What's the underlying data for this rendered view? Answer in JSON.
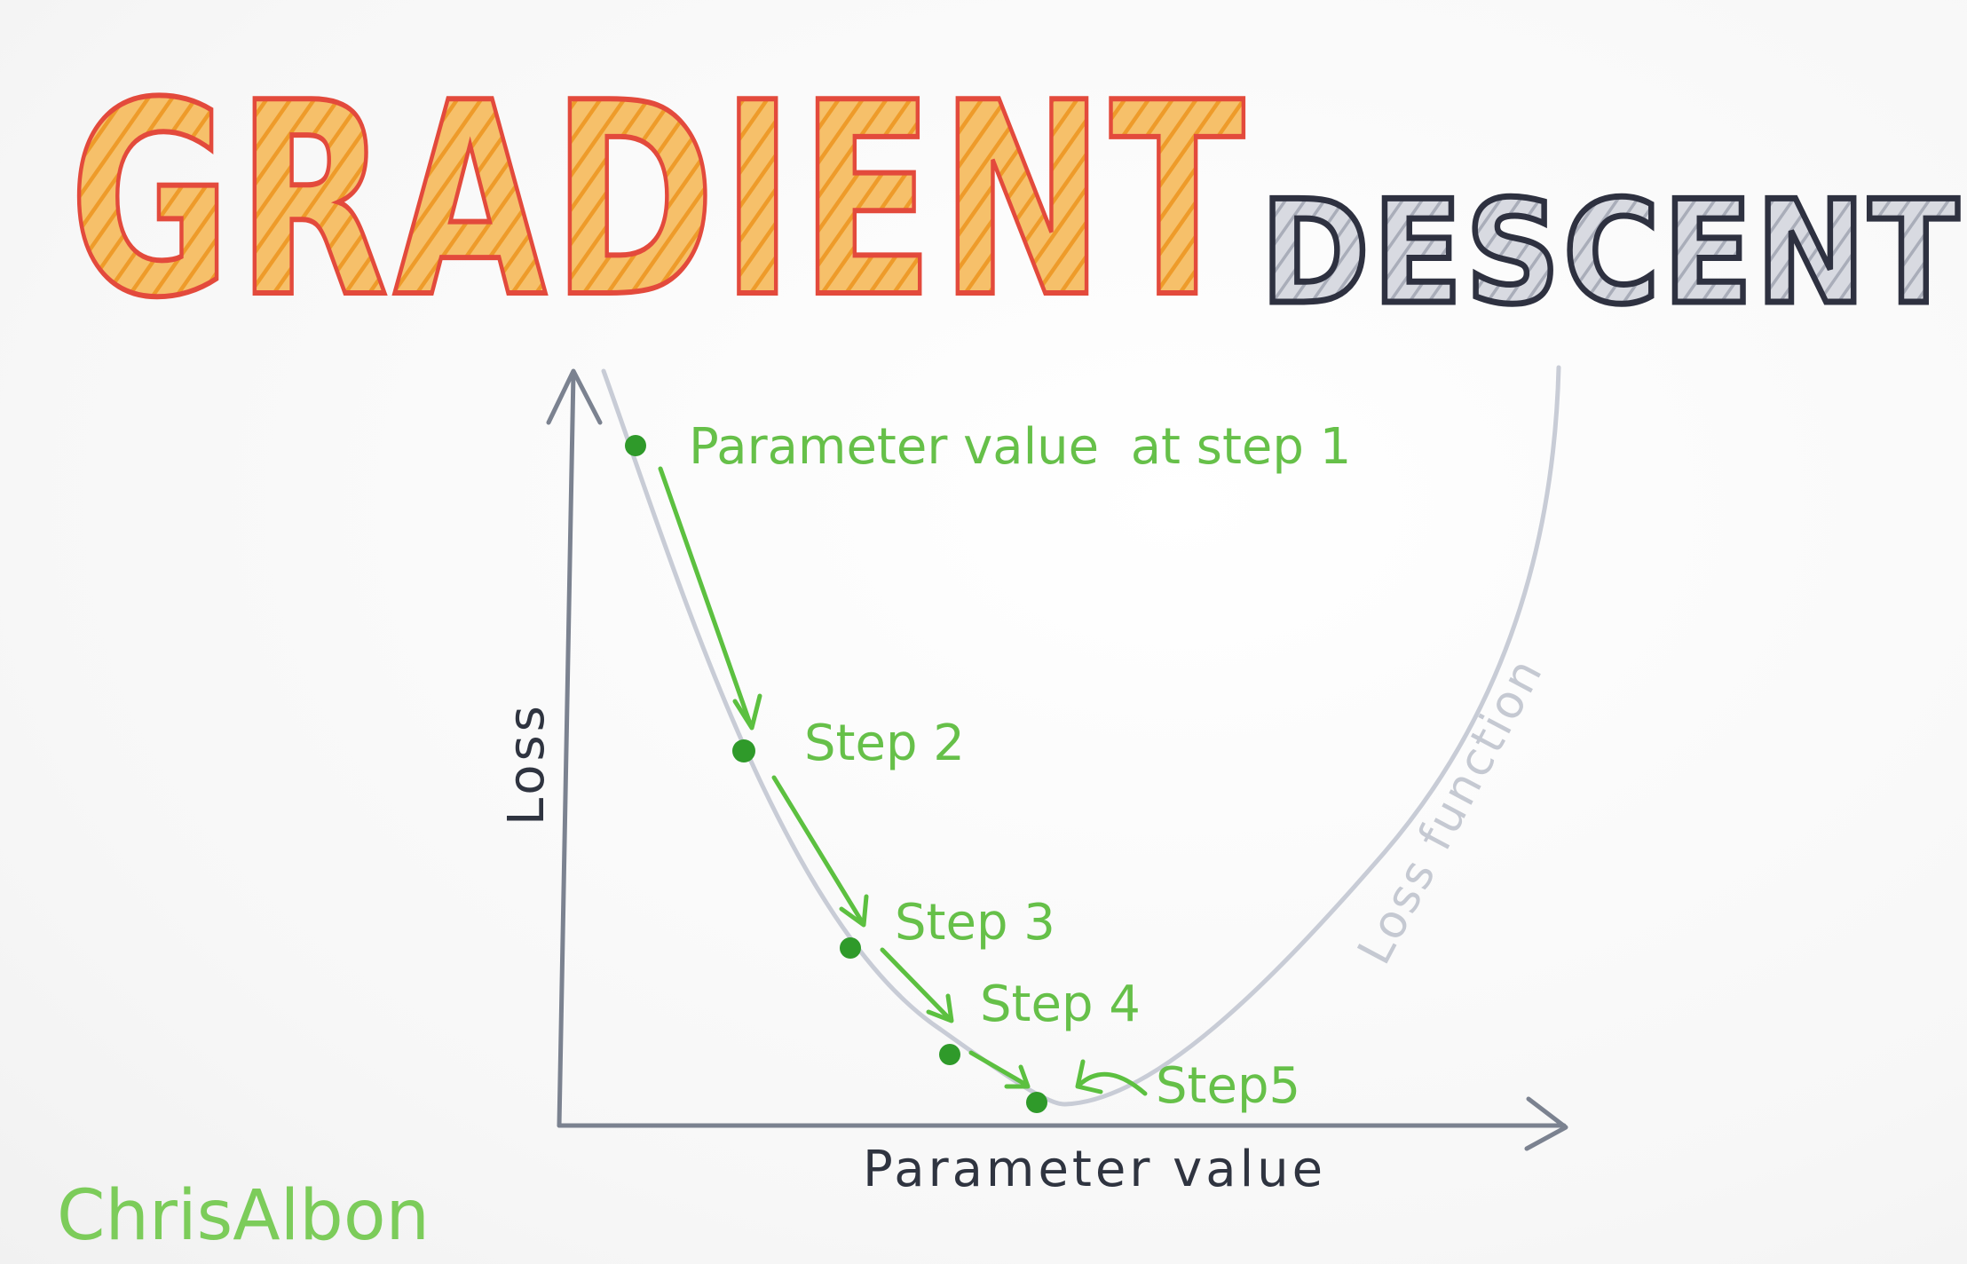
{
  "title": {
    "main": "GRADIENT",
    "sub": "DESCENT"
  },
  "axes": {
    "y_label": "Loss",
    "x_label": "Parameter value"
  },
  "curve_label": "Loss function",
  "steps": [
    {
      "label": "Parameter value  at step 1"
    },
    {
      "label": "Step 2"
    },
    {
      "label": "Step 3"
    },
    {
      "label": "Step 4"
    },
    {
      "label": "Step5"
    }
  ],
  "signature": "ChrisAlbon",
  "colors": {
    "title_fill": "#f4b04a",
    "title_outline": "#e34a3c",
    "sub_fill": "#c9cbd4",
    "sub_outline": "#2e3140",
    "axis": "#7b8290",
    "curve": "#c8ccd6",
    "step_green": "#5cc040",
    "dot_green": "#2f9a2a"
  }
}
